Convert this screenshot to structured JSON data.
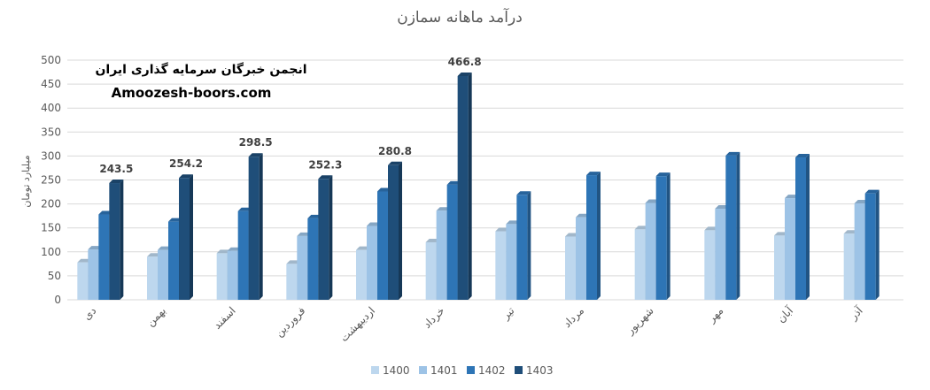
{
  "chart_data": {
    "type": "bar",
    "title": "درآمد ماهانه سمازن",
    "xlabel": "",
    "ylabel": "میلیارد تومان",
    "ylim": [
      0,
      500
    ],
    "yticks": [
      "0",
      "50",
      "100",
      "150",
      "200",
      "250",
      "300",
      "350",
      "400",
      "450",
      "500"
    ],
    "grid": true,
    "legend_position": "bottom",
    "categories": [
      "دی",
      "بهمن",
      "اسفند",
      "فروردین",
      "اردیبهشت",
      "خرداد",
      "تیر",
      "مرداد",
      "شهریور",
      "مهر",
      "آبان",
      "آذر"
    ],
    "series": [
      {
        "name": "1400",
        "color": "#bdd7ee",
        "values": [
          78,
          90,
          97,
          75,
          104,
          120,
          143,
          132,
          147,
          145,
          134,
          138
        ]
      },
      {
        "name": "1401",
        "color": "#9dc3e6",
        "values": [
          105,
          104,
          102,
          133,
          154,
          186,
          158,
          172,
          202,
          190,
          212,
          201
        ]
      },
      {
        "name": "1402",
        "color": "#2e75b6",
        "values": [
          178,
          163,
          185,
          170,
          226,
          240,
          219,
          260,
          258,
          301,
          297,
          222
        ]
      },
      {
        "name": "1403",
        "color": "#1f4e79",
        "values": [
          243.5,
          254.2,
          298.5,
          252.3,
          280.8,
          466.8,
          null,
          null,
          null,
          null,
          null,
          null
        ]
      }
    ],
    "data_labels": {
      "series": "1403",
      "values": [
        "243.5",
        "254.2",
        "298.5",
        "252.3",
        "280.8",
        "466.8"
      ]
    }
  },
  "watermark": {
    "line1": "انجمن خبرگان سرمایه گذاری ایران",
    "line2": "Amoozesh-boors.com"
  }
}
